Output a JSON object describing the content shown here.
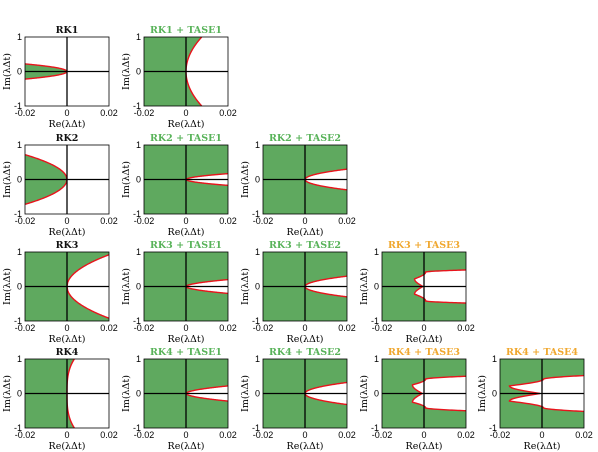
{
  "colors": {
    "stable_fill": "#5fa95f",
    "boundary": "#e8141c",
    "title_plain": "#111111",
    "title_tase_low": "#59b35a",
    "title_tase_high": "#f0a830",
    "axis": "#000000"
  },
  "chart_data": [
    {
      "type": "area",
      "row": 0,
      "col": 0,
      "title": "RK1",
      "title_color": "plain",
      "xlim": [
        -0.02,
        0.02
      ],
      "ylim": [
        -1,
        1
      ],
      "xticks": [
        "-0.02",
        "0",
        "0.02"
      ],
      "yticks": [
        "1",
        "0",
        "-1"
      ],
      "xlabel": "Re(λΔt)",
      "ylabel": "Im(λΔt)",
      "boundary": {
        "kind": "rk1",
        "re": 0,
        "im": 0,
        "half_width_at_left_edge": 0.22,
        "taper": 2
      }
    },
    {
      "type": "area",
      "row": 0,
      "col": 1,
      "title": "RK1 + TASE1",
      "title_color": "tase_low",
      "xlim": [
        -0.02,
        0.02
      ],
      "ylim": [
        -1,
        1
      ],
      "xticks": [
        "-0.02",
        "0",
        "0.02"
      ],
      "yticks": [
        "1",
        "0",
        "-1"
      ],
      "xlabel": "Re(λΔt)",
      "ylabel": "Im(λΔt)",
      "boundary": {
        "kind": "wide",
        "re": 0,
        "im": 0,
        "re_at_top": 0.0075,
        "power": 2
      }
    },
    {
      "type": "area",
      "row": 1,
      "col": 0,
      "title": "RK2",
      "title_color": "plain",
      "xlim": [
        -0.02,
        0.02
      ],
      "ylim": [
        -1,
        1
      ],
      "xticks": [
        "-0.02",
        "0",
        "0.02"
      ],
      "yticks": [
        "1",
        "0",
        "-1"
      ],
      "xlabel": "Re(λΔt)",
      "ylabel": "Im(λΔt)",
      "boundary": {
        "kind": "rk2",
        "re": 0,
        "im": 0,
        "half_width_at_left_edge": 0.72,
        "power": 0.5
      }
    },
    {
      "type": "area",
      "row": 1,
      "col": 1,
      "title": "RK2 + TASE1",
      "title_color": "tase_low",
      "xlim": [
        -0.02,
        0.02
      ],
      "ylim": [
        -1,
        1
      ],
      "xticks": [
        "-0.02",
        "0",
        "0.02"
      ],
      "yticks": [
        "1",
        "0",
        "-1"
      ],
      "xlabel": "Re(λΔt)",
      "ylabel": "Im(λΔt)",
      "boundary": {
        "kind": "parabola",
        "re": 0,
        "im": 0,
        "half_width_at_right_edge": 0.17,
        "power": 0.55
      }
    },
    {
      "type": "area",
      "row": 1,
      "col": 2,
      "title": "RK2 + TASE2",
      "title_color": "tase_low",
      "xlim": [
        -0.02,
        0.02
      ],
      "ylim": [
        -1,
        1
      ],
      "xticks": [
        "-0.02",
        "0",
        "0.02"
      ],
      "yticks": [
        "1",
        "0",
        "-1"
      ],
      "xlabel": "Re(λΔt)",
      "ylabel": "Im(λΔt)",
      "boundary": {
        "kind": "parabola",
        "re": 0,
        "im": 0,
        "half_width_at_right_edge": 0.3,
        "power": 0.5
      }
    },
    {
      "type": "area",
      "row": 2,
      "col": 0,
      "title": "RK3",
      "title_color": "plain",
      "xlim": [
        -0.02,
        0.02
      ],
      "ylim": [
        -1,
        1
      ],
      "xticks": [
        "-0.02",
        "0",
        "0.02"
      ],
      "yticks": [
        "1",
        "0",
        "-1"
      ],
      "xlabel": "Re(λΔt)",
      "ylabel": "Im(λΔt)",
      "boundary": {
        "kind": "parabola",
        "re": 0,
        "im": 0,
        "half_width_at_right_edge": 0.92,
        "power": 0.5
      }
    },
    {
      "type": "area",
      "row": 2,
      "col": 1,
      "title": "RK3 + TASE1",
      "title_color": "tase_low",
      "xlim": [
        -0.02,
        0.02
      ],
      "ylim": [
        -1,
        1
      ],
      "xticks": [
        "-0.02",
        "0",
        "0.02"
      ],
      "yticks": [
        "1",
        "0",
        "-1"
      ],
      "xlabel": "Re(λΔt)",
      "ylabel": "Im(λΔt)",
      "boundary": {
        "kind": "parabola",
        "re": 0,
        "im": 0,
        "half_width_at_right_edge": 0.2,
        "power": 0.55
      }
    },
    {
      "type": "area",
      "row": 2,
      "col": 2,
      "title": "RK3 + TASE2",
      "title_color": "tase_low",
      "xlim": [
        -0.02,
        0.02
      ],
      "ylim": [
        -1,
        1
      ],
      "xticks": [
        "-0.02",
        "0",
        "0.02"
      ],
      "yticks": [
        "1",
        "0",
        "-1"
      ],
      "xlabel": "Re(λΔt)",
      "ylabel": "Im(λΔt)",
      "boundary": {
        "kind": "parabola",
        "re": 0,
        "im": 0,
        "half_width_at_right_edge": 0.3,
        "power": 0.5
      }
    },
    {
      "type": "area",
      "row": 2,
      "col": 3,
      "title": "RK3 + TASE3",
      "title_color": "tase_high",
      "xlim": [
        -0.02,
        0.02
      ],
      "ylim": [
        -1,
        1
      ],
      "xticks": [
        "-0.02",
        "0",
        "0.02"
      ],
      "yticks": [
        "1",
        "0",
        "-1"
      ],
      "xlabel": "Re(λΔt)",
      "ylabel": "Im(λΔt)",
      "boundary": {
        "kind": "notch",
        "re": -0.0005,
        "im": 0,
        "notch_depth": -0.0045,
        "notch_im": 0.22,
        "half_width_at_right_edge": 0.48
      }
    },
    {
      "type": "area",
      "row": 3,
      "col": 0,
      "title": "RK4",
      "title_color": "plain",
      "xlim": [
        -0.02,
        0.02
      ],
      "ylim": [
        -1,
        1
      ],
      "xticks": [
        "-0.02",
        "0",
        "0.02"
      ],
      "yticks": [
        "1",
        "0",
        "-1"
      ],
      "xlabel": "Re(λΔt)",
      "ylabel": "Im(λΔt)",
      "boundary": {
        "kind": "rk4",
        "re": 0,
        "im": 0,
        "re_at_top": 0.0035,
        "power": 3
      }
    },
    {
      "type": "area",
      "row": 3,
      "col": 1,
      "title": "RK4 + TASE1",
      "title_color": "tase_low",
      "xlim": [
        -0.02,
        0.02
      ],
      "ylim": [
        -1,
        1
      ],
      "xticks": [
        "-0.02",
        "0",
        "0.02"
      ],
      "yticks": [
        "1",
        "0",
        "-1"
      ],
      "xlabel": "Re(λΔt)",
      "ylabel": "Im(λΔt)",
      "boundary": {
        "kind": "parabola",
        "re": 0,
        "im": 0,
        "half_width_at_right_edge": 0.22,
        "power": 0.55
      }
    },
    {
      "type": "area",
      "row": 3,
      "col": 2,
      "title": "RK4 + TASE2",
      "title_color": "tase_low",
      "xlim": [
        -0.02,
        0.02
      ],
      "ylim": [
        -1,
        1
      ],
      "xticks": [
        "-0.02",
        "0",
        "0.02"
      ],
      "yticks": [
        "1",
        "0",
        "-1"
      ],
      "xlabel": "Re(λΔt)",
      "ylabel": "Im(λΔt)",
      "boundary": {
        "kind": "parabola",
        "re": 0,
        "im": 0,
        "half_width_at_right_edge": 0.32,
        "power": 0.5
      }
    },
    {
      "type": "area",
      "row": 3,
      "col": 3,
      "title": "RK4 + TASE3",
      "title_color": "tase_high",
      "xlim": [
        -0.02,
        0.02
      ],
      "ylim": [
        -1,
        1
      ],
      "xticks": [
        "-0.02",
        "0",
        "0.02"
      ],
      "yticks": [
        "1",
        "0",
        "-1"
      ],
      "xlabel": "Re(λΔt)",
      "ylabel": "Im(λΔt)",
      "boundary": {
        "kind": "notch",
        "re": -0.0008,
        "im": 0,
        "notch_depth": -0.0055,
        "notch_im": 0.25,
        "half_width_at_right_edge": 0.5
      }
    },
    {
      "type": "area",
      "row": 3,
      "col": 4,
      "title": "RK4 + TASE4",
      "title_color": "tase_high",
      "xlim": [
        -0.02,
        0.02
      ],
      "ylim": [
        -1,
        1
      ],
      "xticks": [
        "-0.02",
        "0",
        "0.02"
      ],
      "yticks": [
        "1",
        "0",
        "-1"
      ],
      "xlabel": "Re(λΔt)",
      "ylabel": "Im(λΔt)",
      "boundary": {
        "kind": "notch",
        "re": -0.001,
        "im": 0,
        "notch_depth": -0.0155,
        "notch_im": 0.22,
        "half_width_at_right_edge": 0.52
      }
    }
  ]
}
